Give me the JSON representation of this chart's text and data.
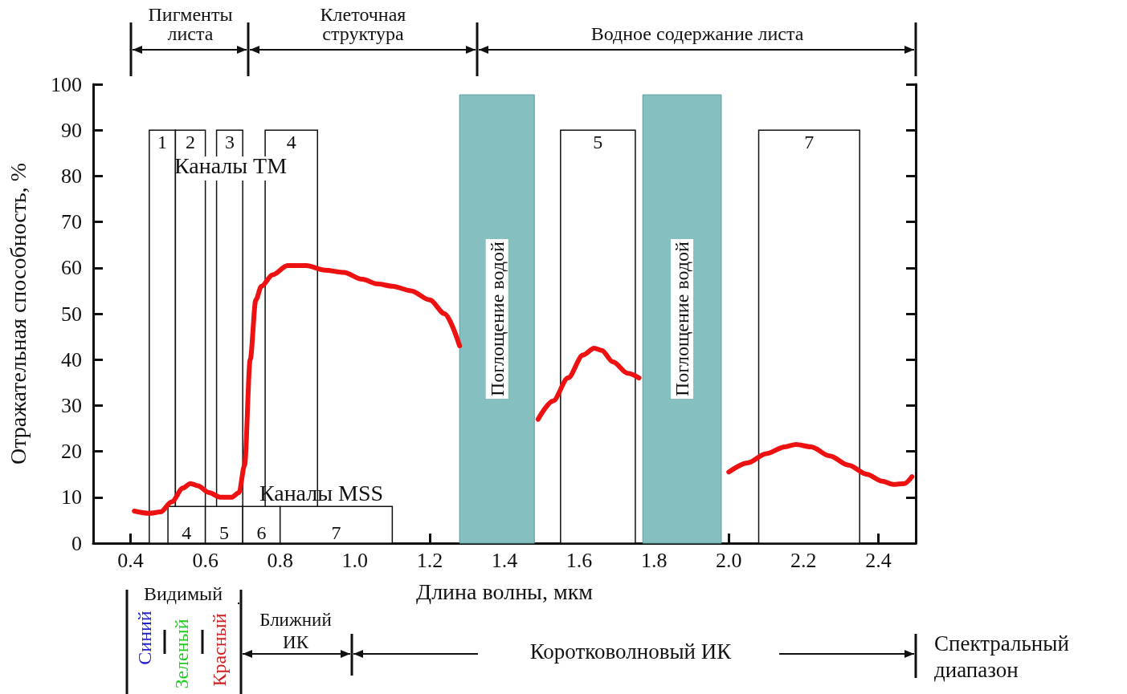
{
  "chart_data": {
    "type": "line",
    "xlabel": "Длина волны, мкм",
    "ylabel": "Отражательная способность, %",
    "x": [
      0.41,
      0.45,
      0.48,
      0.51,
      0.54,
      0.56,
      0.58,
      0.61,
      0.64,
      0.67,
      0.69,
      0.705,
      0.72,
      0.735,
      0.75,
      0.78,
      0.82,
      0.87,
      0.92,
      0.97,
      1.02,
      1.06,
      1.1,
      1.15,
      1.2,
      1.24,
      1.28,
      1.38,
      1.49,
      1.53,
      1.57,
      1.61,
      1.64,
      1.66,
      1.69,
      1.73,
      1.76,
      1.88,
      2.0,
      2.05,
      2.1,
      2.15,
      2.18,
      2.22,
      2.27,
      2.32,
      2.37,
      2.41,
      2.44,
      2.47,
      2.49
    ],
    "series": [
      {
        "color": "#ee1111",
        "values": [
          7,
          6.5,
          6.8,
          9,
          12,
          13,
          12.5,
          11,
          10,
          10,
          11,
          17,
          40,
          53,
          56,
          58.5,
          60.5,
          60.5,
          59.5,
          59,
          57.5,
          56.5,
          56,
          55,
          53,
          50,
          43,
          null,
          27,
          31,
          36,
          41,
          42.5,
          42,
          39.5,
          37,
          36,
          null,
          15.5,
          17.5,
          19.5,
          21,
          21.5,
          21,
          19,
          17,
          15,
          13.5,
          12.8,
          13,
          14.5
        ]
      }
    ],
    "xlim": [
      0.3,
      2.5
    ],
    "xticks": [
      0.4,
      0.6,
      0.8,
      {
        "value": 1,
        "label": "1.0"
      },
      1.2,
      1.4,
      1.6,
      1.8,
      {
        "value": 2,
        "label": "2.0"
      },
      2.2,
      2.4
    ],
    "ylim": [
      0,
      100
    ],
    "yticks": [
      0,
      10,
      20,
      30,
      40,
      50,
      60,
      70,
      80,
      90,
      100
    ],
    "marker": "none",
    "line_style": "solid",
    "bands": [
      {
        "axis": "x",
        "from": 1.28,
        "to": 1.48,
        "label": "Поглощение водой",
        "color": "#86bfbf"
      },
      {
        "axis": "x",
        "from": 1.77,
        "to": 1.98,
        "label": "Поглощение водой",
        "color": "#86bfbf"
      },
      {
        "axis": "x",
        "from": 0.45,
        "to": 0.52,
        "label": "1",
        "color": "#ffffff"
      },
      {
        "axis": "x",
        "from": 0.52,
        "to": 0.6,
        "label": "2",
        "color": "#ffffff"
      },
      {
        "axis": "x",
        "from": 0.63,
        "to": 0.7,
        "label": "3",
        "color": "#ffffff"
      },
      {
        "axis": "x",
        "from": 0.76,
        "to": 0.9,
        "label": "4",
        "color": "#ffffff"
      },
      {
        "axis": "x",
        "from": 1.55,
        "to": 1.75,
        "label": "5",
        "color": "#ffffff"
      },
      {
        "axis": "x",
        "from": 2.08,
        "to": 2.35,
        "label": "7",
        "color": "#ffffff"
      },
      {
        "axis": "x",
        "from": 0.5,
        "to": 0.6,
        "label": "4",
        "color": "#ffffff"
      },
      {
        "axis": "x",
        "from": 0.6,
        "to": 0.7,
        "label": "5",
        "color": "#ffffff"
      },
      {
        "axis": "x",
        "from": 0.7,
        "to": 0.8,
        "label": "6",
        "color": "#ffffff"
      },
      {
        "axis": "x",
        "from": 0.8,
        "to": 1.1,
        "label": "7",
        "color": "#ffffff"
      }
    ],
    "annotations": [
      "Каналы TM",
      "Каналы MSS",
      "Пигменты листа",
      "Клеточная структура",
      "Водное содержание листа",
      "Видимый",
      "Синий",
      "Зеленый",
      "Красный",
      "Ближний ИК",
      "Коротковолновый ИК",
      "Спектральный диапазон"
    ]
  }
}
